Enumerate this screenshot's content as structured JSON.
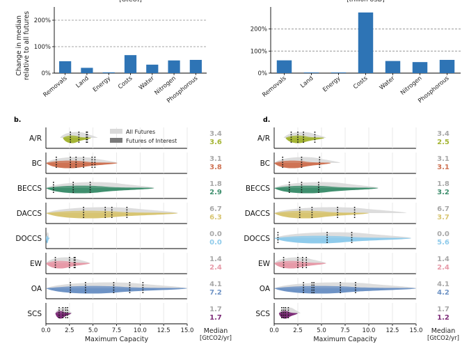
{
  "chart_data": [
    {
      "type": "bar",
      "panel": "a-left",
      "title_fragment": "[GtCO₂]",
      "ylabel": "Change in median\nrelative to all futures",
      "categories": [
        "Removals",
        "Land",
        "Energy",
        "Costs",
        "Water",
        "Nitrogen",
        "Phosphorous"
      ],
      "values": [
        45,
        20,
        3,
        68,
        32,
        48,
        50
      ],
      "yticks": [
        "0%",
        "100%",
        "200%"
      ],
      "ylim": [
        0,
        250
      ],
      "grid": "dashed horizontal at 100% and 200%",
      "color": "#2e74b5"
    },
    {
      "type": "bar",
      "panel": "a-right",
      "title_fragment": "[trillion USD]",
      "categories": [
        "Removals",
        "Land",
        "Energy",
        "Costs",
        "Water",
        "Nitrogen",
        "Phosphorous"
      ],
      "values": [
        58,
        3,
        3,
        275,
        55,
        50,
        60
      ],
      "yticks": [
        "0%",
        "100%",
        "200%"
      ],
      "ylim": [
        0,
        300
      ],
      "grid": "dashed horizontal at 100% and 200%",
      "color": "#2e74b5"
    },
    {
      "type": "violin",
      "panel": "b.",
      "xlabel": "Maximum Capacity",
      "xticks": [
        "0.0",
        "2.5",
        "5.0",
        "7.5",
        "10.0",
        "12.5",
        "15.0"
      ],
      "xlim": [
        0,
        15
      ],
      "median_header": "Median",
      "median_unit": "[GtCO2/yr]",
      "legend": [
        "All Futures",
        "Futures of Interest"
      ],
      "rows": [
        {
          "name": "A/R",
          "color": "#a5b535",
          "all_median": "3.4",
          "interest_median": "3.6",
          "all_range": [
            1.5,
            5.5
          ],
          "interest_range": [
            1.8,
            4.8
          ],
          "markers": [
            2.6,
            3.5,
            4.3,
            4.4
          ]
        },
        {
          "name": "BC",
          "color": "#cf7354",
          "all_median": "3.1",
          "interest_median": "3.8",
          "all_range": [
            0,
            7.6
          ],
          "interest_range": [
            0,
            7.6
          ],
          "markers": [
            1.1,
            2.6,
            3.2,
            4.0,
            4.9,
            5.2
          ]
        },
        {
          "name": "BECCS",
          "color": "#3f8f6e",
          "all_median": "1.8",
          "interest_median": "2.9",
          "all_range": [
            0,
            11.5
          ],
          "interest_range": [
            0,
            11.5
          ],
          "markers": [
            0.8,
            2.9,
            4.7
          ]
        },
        {
          "name": "DACCS",
          "color": "#d8c572",
          "all_median": "6.7",
          "interest_median": "6.3",
          "all_range": [
            0,
            14
          ],
          "interest_range": [
            0,
            14
          ],
          "markers": [
            4.0,
            6.3,
            7.0,
            8.6
          ]
        },
        {
          "name": "DOCCS",
          "color": "#8fcbeb",
          "all_median": "0.0",
          "interest_median": "0.0",
          "all_range": [
            0,
            0.4
          ],
          "interest_range": [
            0,
            0.4
          ],
          "markers": []
        },
        {
          "name": "EW",
          "color": "#e79aa8",
          "all_median": "1.4",
          "interest_median": "2.4",
          "all_range": [
            0,
            4.7
          ],
          "interest_range": [
            0,
            4.7
          ],
          "markers": [
            1.0,
            2.5,
            3.0,
            3.1
          ]
        },
        {
          "name": "OA",
          "color": "#6e93c5",
          "all_median": "4.1",
          "interest_median": "7.2",
          "all_range": [
            0,
            15
          ],
          "interest_range": [
            0,
            15
          ],
          "markers": [
            2.6,
            4.2,
            7.2,
            8.9,
            10.3
          ]
        },
        {
          "name": "SCS",
          "color": "#7d2c78",
          "all_median": "1.7",
          "interest_median": "1.7",
          "all_range": [
            1.0,
            2.8
          ],
          "interest_range": [
            1.0,
            2.7
          ],
          "markers": [
            1.4,
            1.8,
            2.1,
            2.3
          ]
        }
      ]
    },
    {
      "type": "violin",
      "panel": "d.",
      "xlabel": "Maximum Capacity",
      "xticks": [
        "0.0",
        "2.5",
        "5.0",
        "7.5",
        "10.0",
        "12.5",
        "15.0"
      ],
      "xlim": [
        0,
        15
      ],
      "median_header": "Median",
      "median_unit": "[GtCO2/yr]",
      "rows": [
        {
          "name": "A/R",
          "color": "#a5b535",
          "all_median": "3.4",
          "interest_median": "2.5",
          "all_range": [
            1.0,
            5.5
          ],
          "interest_range": [
            1.2,
            5.3
          ],
          "markers": [
            1.8,
            2.5,
            3.1,
            4.3
          ]
        },
        {
          "name": "BC",
          "color": "#cf7354",
          "all_median": "3.1",
          "interest_median": "3.1",
          "all_range": [
            0,
            7.0
          ],
          "interest_range": [
            0,
            6.0
          ],
          "markers": [
            0.9,
            2.9,
            4.8
          ]
        },
        {
          "name": "BECCS",
          "color": "#3f8f6e",
          "all_median": "1.8",
          "interest_median": "3.2",
          "all_range": [
            0,
            11
          ],
          "interest_range": [
            0,
            11
          ],
          "markers": [
            1.6,
            2.9,
            4.7
          ]
        },
        {
          "name": "DACCS",
          "color": "#d8c572",
          "all_median": "6.7",
          "interest_median": "3.7",
          "all_range": [
            0,
            14
          ],
          "interest_range": [
            0,
            10
          ],
          "markers": [
            2.7,
            4.0,
            6.7,
            8.5
          ]
        },
        {
          "name": "DOCCS",
          "color": "#8fcbeb",
          "all_median": "0.0",
          "interest_median": "5.6",
          "all_range": [
            0,
            14.5
          ],
          "interest_range": [
            0,
            14.5
          ],
          "markers": [
            0.4,
            5.6,
            8.2
          ]
        },
        {
          "name": "EW",
          "color": "#e79aa8",
          "all_median": "1.4",
          "interest_median": "2.4",
          "all_range": [
            0,
            5.5
          ],
          "interest_range": [
            0,
            5.5
          ],
          "markers": [
            1.0,
            2.5,
            3.0,
            3.4
          ]
        },
        {
          "name": "OA",
          "color": "#6e93c5",
          "all_median": "4.1",
          "interest_median": "4.2",
          "all_range": [
            0,
            15
          ],
          "interest_range": [
            0,
            15
          ],
          "markers": [
            3.1,
            4.0,
            4.2,
            7.0,
            8.6
          ]
        },
        {
          "name": "SCS",
          "color": "#7d2c78",
          "all_median": "1.7",
          "interest_median": "1.2",
          "all_range": [
            0.5,
            2.8
          ],
          "interest_range": [
            0.5,
            2.5
          ],
          "markers": [
            0.8,
            1.0,
            1.2,
            1.5
          ]
        }
      ]
    }
  ]
}
